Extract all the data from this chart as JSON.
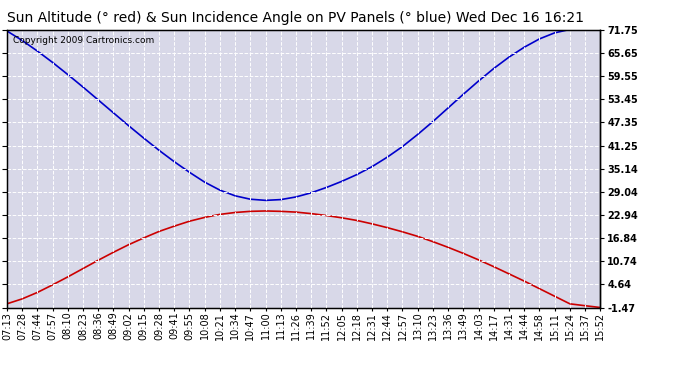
{
  "title": "Sun Altitude (° red) & Sun Incidence Angle on PV Panels (° blue) Wed Dec 16 16:21",
  "copyright": "Copyright 2009 Cartronics.com",
  "ylim": [
    -1.47,
    71.75
  ],
  "yticks": [
    71.75,
    65.65,
    59.55,
    53.45,
    47.35,
    41.25,
    35.14,
    29.04,
    22.94,
    16.84,
    10.74,
    4.64,
    -1.47
  ],
  "xtick_labels": [
    "07:13",
    "07:28",
    "07:44",
    "07:57",
    "08:10",
    "08:23",
    "08:36",
    "08:49",
    "09:02",
    "09:15",
    "09:28",
    "09:41",
    "09:55",
    "10:08",
    "10:21",
    "10:34",
    "10:47",
    "11:00",
    "11:13",
    "11:26",
    "11:39",
    "11:52",
    "12:05",
    "12:18",
    "12:31",
    "12:44",
    "12:57",
    "13:10",
    "13:23",
    "13:36",
    "13:49",
    "14:03",
    "14:17",
    "14:31",
    "14:44",
    "14:58",
    "15:11",
    "15:24",
    "15:37",
    "15:52"
  ],
  "blue_y": [
    71.5,
    69.0,
    66.2,
    63.2,
    60.0,
    56.7,
    53.3,
    49.9,
    46.5,
    43.2,
    40.0,
    37.0,
    34.2,
    31.6,
    29.5,
    28.0,
    27.1,
    26.8,
    27.0,
    27.7,
    28.8,
    30.2,
    31.8,
    33.6,
    35.7,
    38.2,
    41.0,
    44.2,
    47.6,
    51.2,
    54.8,
    58.3,
    61.6,
    64.6,
    67.2,
    69.4,
    71.0,
    71.9,
    72.0,
    72.0
  ],
  "red_y": [
    -0.5,
    0.8,
    2.5,
    4.5,
    6.6,
    8.8,
    11.0,
    13.1,
    15.1,
    16.9,
    18.6,
    20.0,
    21.3,
    22.3,
    23.1,
    23.6,
    23.9,
    24.0,
    23.9,
    23.7,
    23.3,
    22.8,
    22.2,
    21.5,
    20.6,
    19.6,
    18.5,
    17.3,
    15.9,
    14.4,
    12.8,
    11.1,
    9.3,
    7.4,
    5.5,
    3.5,
    1.5,
    -0.5,
    -1.0,
    -1.47
  ],
  "blue_color": "#0000cc",
  "red_color": "#cc0000",
  "bg_color": "#ffffff",
  "plot_bg_color": "#d8d8e8",
  "grid_color": "#ffffff",
  "grid_style": "--",
  "title_fontsize": 10,
  "tick_fontsize": 7,
  "copyright_fontsize": 6.5
}
